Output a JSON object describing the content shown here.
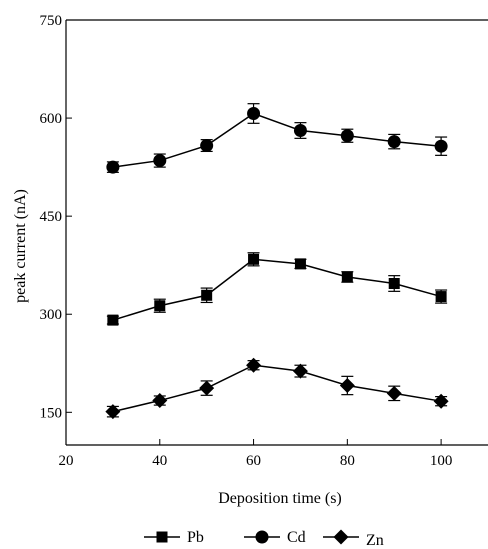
{
  "chart_data": {
    "type": "line",
    "title": "",
    "xlabel": "Deposition time (s)",
    "ylabel": "peak current (nA)",
    "xlim": [
      20,
      110
    ],
    "ylim": [
      100,
      750
    ],
    "x_ticks": [
      20,
      40,
      60,
      80,
      100
    ],
    "y_ticks": [
      150,
      300,
      450,
      600,
      750
    ],
    "x_tick_labels": [
      "20",
      "40",
      "60",
      "80",
      "100"
    ],
    "y_tick_labels": [
      "150",
      "300",
      "450",
      "600",
      "750"
    ],
    "grid": false,
    "legend_position": "bottom",
    "x": [
      30,
      40,
      50,
      60,
      70,
      80,
      90,
      100
    ],
    "series": [
      {
        "name": "Pb",
        "marker": "square",
        "values": [
          291,
          313,
          329,
          384,
          377,
          357,
          347,
          327
        ],
        "errors": [
          6,
          10,
          11,
          10,
          7,
          8,
          12,
          10
        ]
      },
      {
        "name": "Cd",
        "marker": "circle",
        "values": [
          525,
          535,
          558,
          607,
          581,
          573,
          564,
          557
        ],
        "errors": [
          8,
          10,
          9,
          15,
          12,
          10,
          11,
          14
        ]
      },
      {
        "name": "Zn",
        "marker": "diamond",
        "values": [
          151,
          168,
          187,
          222,
          213,
          191,
          179,
          167
        ],
        "errors": [
          8,
          7,
          11,
          7,
          9,
          14,
          11,
          7
        ]
      }
    ],
    "colors": {
      "line": "#000000",
      "marker": "#000000"
    }
  }
}
